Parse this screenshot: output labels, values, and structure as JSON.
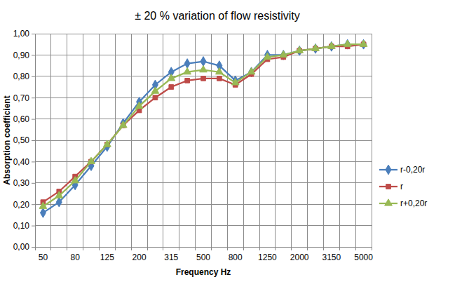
{
  "chart_data": {
    "type": "line",
    "title": "± 20 % variation of flow resistivity",
    "x_label": "Frequency Hz",
    "y_label": "Absorption coefficient",
    "categories": [
      "50",
      null,
      "80",
      null,
      "125",
      null,
      "200",
      null,
      "315",
      null,
      "500",
      null,
      "800",
      null,
      "1250",
      null,
      "2000",
      null,
      "3150",
      null,
      "5000"
    ],
    "series": [
      {
        "name": "r-0,20r",
        "color": "#4a7ebb",
        "marker": "diamond",
        "values": [
          0.16,
          0.21,
          0.29,
          0.38,
          0.47,
          0.58,
          0.68,
          0.76,
          0.82,
          0.86,
          0.87,
          0.85,
          0.78,
          0.82,
          0.9,
          0.9,
          0.92,
          0.93,
          0.94,
          0.95,
          0.95
        ]
      },
      {
        "name": "r",
        "color": "#be4b48",
        "marker": "square",
        "values": [
          0.21,
          0.26,
          0.33,
          0.4,
          0.48,
          0.57,
          0.64,
          0.7,
          0.75,
          0.78,
          0.79,
          0.79,
          0.76,
          0.81,
          0.88,
          0.89,
          0.92,
          0.93,
          0.94,
          0.94,
          0.95
        ]
      },
      {
        "name": "r+0,20r",
        "color": "#98b954",
        "marker": "triangle",
        "values": [
          0.19,
          0.24,
          0.31,
          0.4,
          0.48,
          0.57,
          0.66,
          0.73,
          0.79,
          0.82,
          0.83,
          0.82,
          0.77,
          0.82,
          0.89,
          0.9,
          0.92,
          0.93,
          0.94,
          0.95,
          0.95
        ]
      }
    ],
    "ylim": [
      0,
      1
    ],
    "yticks": [
      {
        "value": 0,
        "label": "0,00"
      },
      {
        "value": 0.1,
        "label": "0,10"
      },
      {
        "value": 0.2,
        "label": "0,20"
      },
      {
        "value": 0.3,
        "label": "0,30"
      },
      {
        "value": 0.4,
        "label": "0,40"
      },
      {
        "value": 0.5,
        "label": "0,50"
      },
      {
        "value": 0.6,
        "label": "0,60"
      },
      {
        "value": 0.7,
        "label": "0,70"
      },
      {
        "value": 0.8,
        "label": "0,80"
      },
      {
        "value": 0.9,
        "label": "0,90"
      },
      {
        "value": 1,
        "label": "1,00"
      }
    ],
    "grid": true,
    "legend": "right"
  }
}
